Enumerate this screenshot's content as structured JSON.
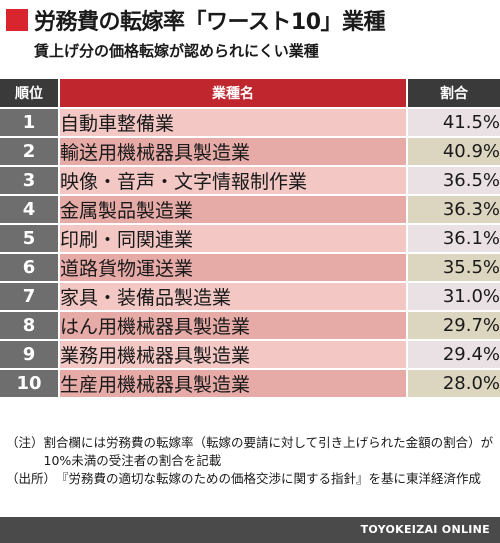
{
  "header": {
    "title": "労務費の転嫁率「ワースト10」業種",
    "subtitle": "賃上げ分の価格転嫁が認められにくい業種",
    "accent_color": "#d9262e"
  },
  "table": {
    "columns": [
      "順位",
      "業種名",
      "割合"
    ],
    "rows": [
      {
        "rank": "1",
        "industry": "自動車整備業",
        "ratio": "41.5%"
      },
      {
        "rank": "2",
        "industry": "輸送用機械器具製造業",
        "ratio": "40.9%"
      },
      {
        "rank": "3",
        "industry": "映像・音声・文字情報制作業",
        "ratio": "36.5%"
      },
      {
        "rank": "4",
        "industry": "金属製品製造業",
        "ratio": "36.3%"
      },
      {
        "rank": "5",
        "industry": "印刷・同関連業",
        "ratio": "36.1%"
      },
      {
        "rank": "6",
        "industry": "道路貨物運送業",
        "ratio": "35.5%"
      },
      {
        "rank": "7",
        "industry": "家具・装備品製造業",
        "ratio": "31.0%"
      },
      {
        "rank": "8",
        "industry": "はん用機械器具製造業",
        "ratio": "29.7%"
      },
      {
        "rank": "9",
        "industry": "業務用機械器具製造業",
        "ratio": "29.4%"
      },
      {
        "rank": "10",
        "industry": "生産用機械器具製造業",
        "ratio": "28.0%"
      }
    ]
  },
  "notes": [
    {
      "label": "（注）",
      "text": "割合欄には労務費の転嫁率（転嫁の要請に対して引き上げられた金額の割合）が10%未満の受注者の割合を記載"
    },
    {
      "label": "（出所）",
      "text": "『労務費の適切な転嫁のための価格交渉に関する指針』を基に東洋経済作成"
    }
  ],
  "footer": {
    "brand": "TOYOKEIZAI ONLINE"
  }
}
